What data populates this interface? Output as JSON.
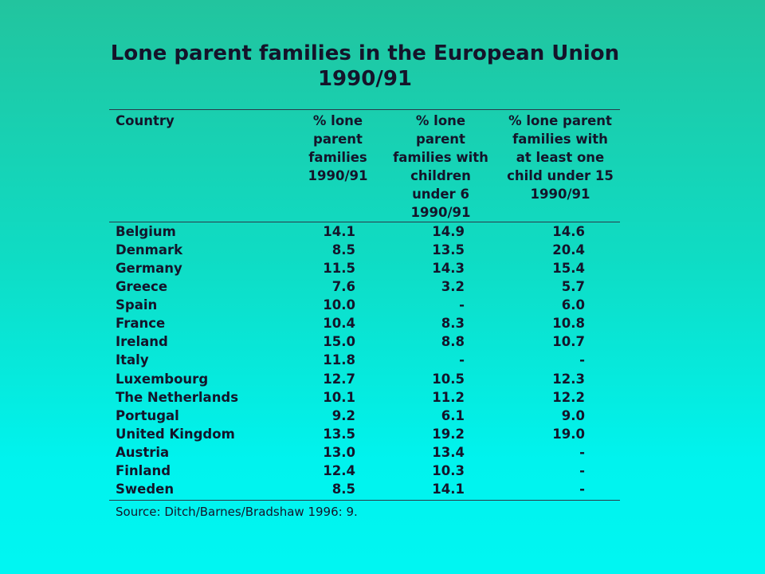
{
  "title": {
    "lines": [
      "Lone parent families in the European Union",
      "1990/91"
    ]
  },
  "table": {
    "headers": [
      [
        "Country"
      ],
      [
        "% lone",
        "parent",
        "families",
        "1990/91"
      ],
      [
        "% lone",
        "parent",
        "families with",
        "children",
        "under 6",
        "1990/91"
      ],
      [
        "% lone parent",
        "families with",
        "at least one",
        "child under 15",
        "1990/91"
      ]
    ],
    "rows": [
      [
        "Belgium",
        "14.1",
        "14.9",
        "14.6"
      ],
      [
        "Denmark",
        "8.5",
        "13.5",
        "20.4"
      ],
      [
        "Germany",
        "11.5",
        "14.3",
        "15.4"
      ],
      [
        "Greece",
        "7.6",
        "3.2",
        "5.7"
      ],
      [
        "Spain",
        "10.0",
        "-",
        "6.0"
      ],
      [
        "France",
        "10.4",
        "8.3",
        "10.8"
      ],
      [
        "Ireland",
        "15.0",
        "8.8",
        "10.7"
      ],
      [
        "Italy",
        "11.8",
        "-",
        "-"
      ],
      [
        "Luxembourg",
        "12.7",
        "10.5",
        "12.3"
      ],
      [
        "The Netherlands",
        "10.1",
        "11.2",
        "12.2"
      ],
      [
        "Portugal",
        "9.2",
        "6.1",
        "9.0"
      ],
      [
        "United Kingdom",
        "13.5",
        "19.2",
        "19.0"
      ],
      [
        "Austria",
        "13.0",
        "13.4",
        "-"
      ],
      [
        "Finland",
        "12.4",
        "10.3",
        "-"
      ],
      [
        "Sweden",
        "8.5",
        "14.1",
        "-"
      ]
    ]
  },
  "source": "Source: Ditch/Barnes/Bradshaw 1996: 9."
}
